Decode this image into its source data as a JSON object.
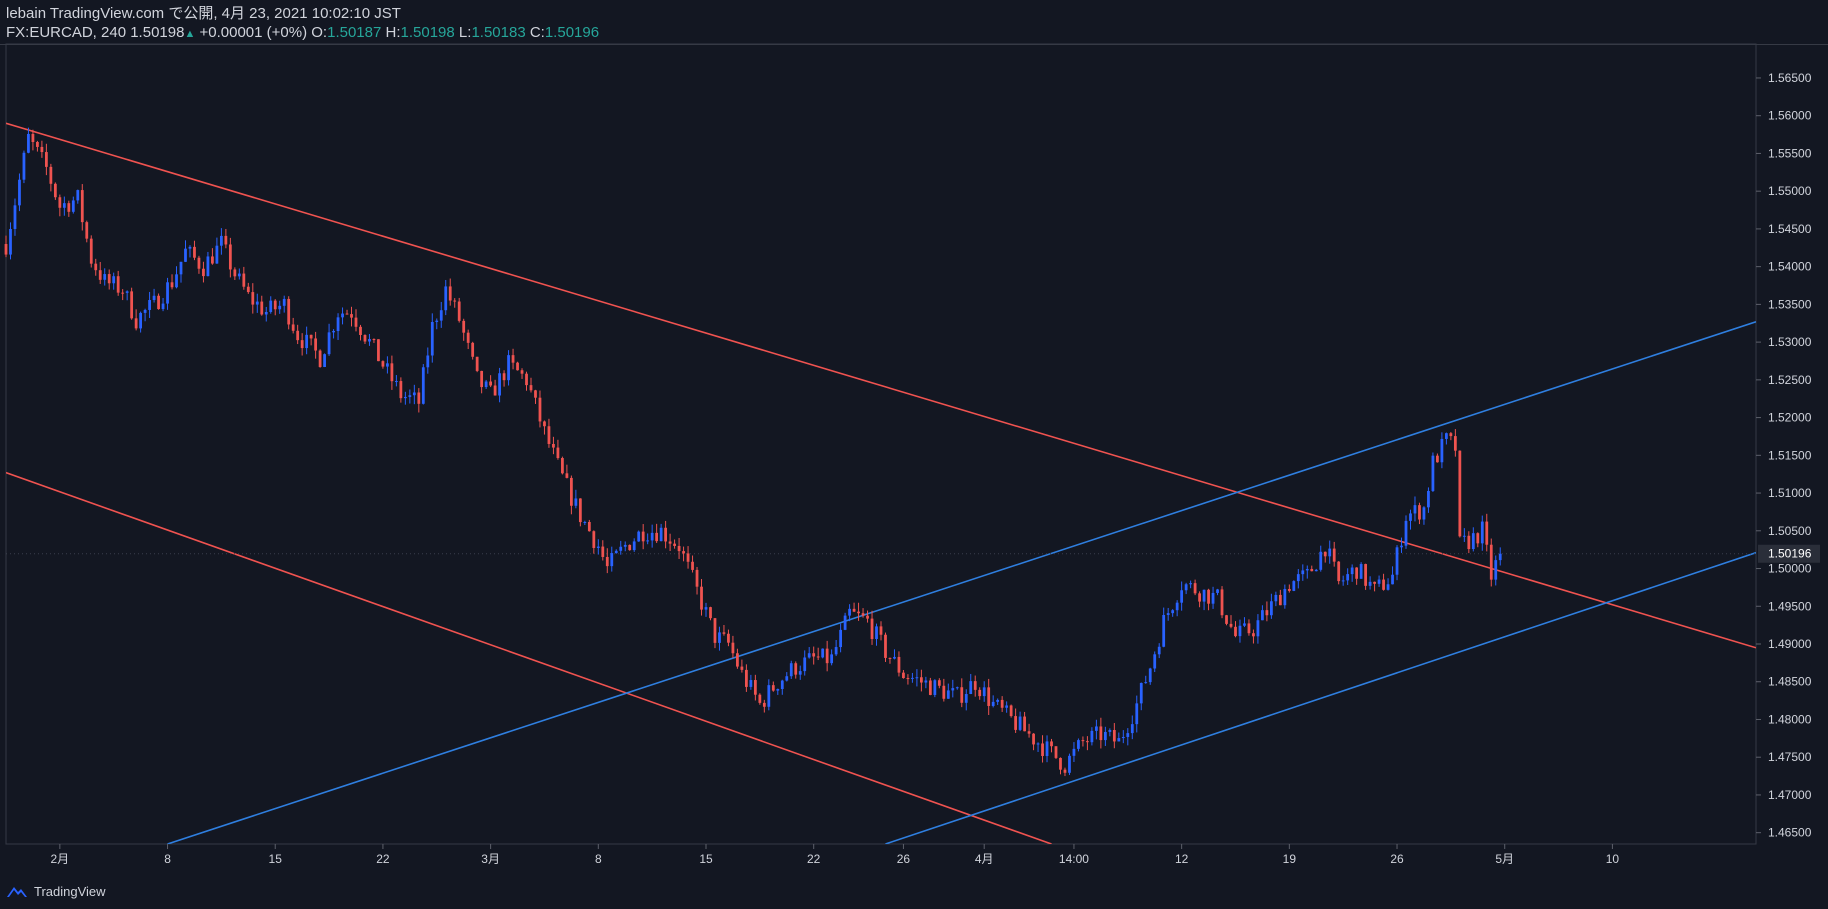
{
  "header": {
    "published": "lebain TradingView.com で公開, 4月 23, 2021 10:02:10 JST",
    "symbol": "FX:EURCAD, 240",
    "last": "1.50198",
    "change": "+0.00001 (+0%)",
    "o_label": "O:",
    "o_val": "1.50187",
    "h_label": "H:",
    "h_val": "1.50198",
    "l_label": "L:",
    "l_val": "1.50183",
    "c_label": "C:",
    "c_val": "1.50196"
  },
  "footer": {
    "brand": "TradingView"
  },
  "colors": {
    "background": "#131722",
    "up": "#2962ff",
    "down": "#ef5350",
    "red_line": "#f05350",
    "blue_line": "#2f7fe0",
    "axis_text": "#d1d4dc",
    "price_tag_bg": "#2a2e39"
  },
  "chart_data": {
    "type": "candlestick",
    "symbol": "FX:EURCAD",
    "timeframe": "240",
    "ylim": [
      1.4635,
      1.5695
    ],
    "y_ticks": [
      "1.56500",
      "1.56000",
      "1.55500",
      "1.55000",
      "1.54500",
      "1.54000",
      "1.53500",
      "1.53000",
      "1.52500",
      "1.52000",
      "1.51500",
      "1.51000",
      "1.50500",
      "1.50000",
      "1.49500",
      "1.49000",
      "1.48500",
      "1.48000",
      "1.47500",
      "1.47000",
      "1.46500"
    ],
    "x_ticks": [
      "2月",
      "8",
      "15",
      "22",
      "3月",
      "8",
      "15",
      "22",
      "26",
      "4月",
      "14:00",
      "12",
      "19",
      "26",
      "5月",
      "10"
    ],
    "current_price": "1.50196",
    "close_path": [
      [
        0,
        1.543
      ],
      [
        5,
        1.557
      ],
      [
        9,
        1.553
      ],
      [
        12,
        1.548
      ],
      [
        16,
        1.549
      ],
      [
        19,
        1.541
      ],
      [
        22,
        1.538
      ],
      [
        26,
        1.537
      ],
      [
        29,
        1.533
      ],
      [
        33,
        1.535
      ],
      [
        37,
        1.538
      ],
      [
        40,
        1.542
      ],
      [
        44,
        1.54
      ],
      [
        48,
        1.543
      ],
      [
        51,
        1.539
      ],
      [
        54,
        1.536
      ],
      [
        58,
        1.534
      ],
      [
        62,
        1.535
      ],
      [
        65,
        1.531
      ],
      [
        70,
        1.528
      ],
      [
        74,
        1.534
      ],
      [
        77,
        1.534
      ],
      [
        81,
        1.53
      ],
      [
        84,
        1.527
      ],
      [
        88,
        1.523
      ],
      [
        92,
        1.522
      ],
      [
        95,
        1.532
      ],
      [
        98,
        1.537
      ],
      [
        101,
        1.533
      ],
      [
        105,
        1.525
      ],
      [
        108,
        1.523
      ],
      [
        112,
        1.527
      ],
      [
        116,
        1.525
      ],
      [
        120,
        1.518
      ],
      [
        124,
        1.512
      ],
      [
        128,
        1.507
      ],
      [
        132,
        1.503
      ],
      [
        134,
        1.5
      ],
      [
        138,
        1.503
      ],
      [
        142,
        1.505
      ],
      [
        146,
        1.505
      ],
      [
        150,
        1.503
      ],
      [
        154,
        1.497
      ],
      [
        158,
        1.491
      ],
      [
        161,
        1.49
      ],
      [
        164,
        1.486
      ],
      [
        168,
        1.482
      ],
      [
        172,
        1.485
      ],
      [
        176,
        1.487
      ],
      [
        180,
        1.488
      ],
      [
        184,
        1.488
      ],
      [
        188,
        1.494
      ],
      [
        192,
        1.493
      ],
      [
        196,
        1.489
      ],
      [
        200,
        1.486
      ],
      [
        204,
        1.485
      ],
      [
        208,
        1.484
      ],
      [
        212,
        1.483
      ],
      [
        216,
        1.485
      ],
      [
        220,
        1.482
      ],
      [
        224,
        1.48
      ],
      [
        228,
        1.478
      ],
      [
        232,
        1.476
      ],
      [
        236,
        1.474
      ],
      [
        240,
        1.477
      ],
      [
        244,
        1.478
      ],
      [
        248,
        1.477
      ],
      [
        252,
        1.482
      ],
      [
        255,
        1.487
      ],
      [
        258,
        1.493
      ],
      [
        262,
        1.498
      ],
      [
        266,
        1.497
      ],
      [
        270,
        1.496
      ],
      [
        274,
        1.491
      ],
      [
        278,
        1.492
      ],
      [
        282,
        1.495
      ],
      [
        286,
        1.498
      ],
      [
        290,
        1.499
      ],
      [
        294,
        1.503
      ],
      [
        297,
        1.498
      ],
      [
        301,
        1.5
      ],
      [
        305,
        1.497
      ],
      [
        309,
        1.499
      ],
      [
        312,
        1.507
      ],
      [
        316,
        1.508
      ],
      [
        318,
        1.514
      ],
      [
        321,
        1.517
      ],
      [
        323,
        1.516
      ],
      [
        324,
        1.503
      ],
      [
        327,
        1.504
      ],
      [
        329,
        1.505
      ],
      [
        331,
        1.499
      ],
      [
        333,
        1.50196
      ]
    ],
    "trendlines": [
      {
        "name": "red-upper",
        "color": "#f05350",
        "p1": [
          0,
          1.559
        ],
        "p2": [
          390,
          1.4895
        ]
      },
      {
        "name": "red-lower",
        "color": "#f05350",
        "p1": [
          0,
          1.5127
        ],
        "p2": [
          233,
          1.4635
        ]
      },
      {
        "name": "blue-upper",
        "color": "#2f7fe0",
        "p1": [
          36,
          1.4635
        ],
        "p2": [
          390,
          1.5327
        ]
      },
      {
        "name": "blue-lower",
        "color": "#2f7fe0",
        "p1": [
          196,
          1.4635
        ],
        "p2": [
          390,
          1.5021
        ]
      }
    ]
  }
}
